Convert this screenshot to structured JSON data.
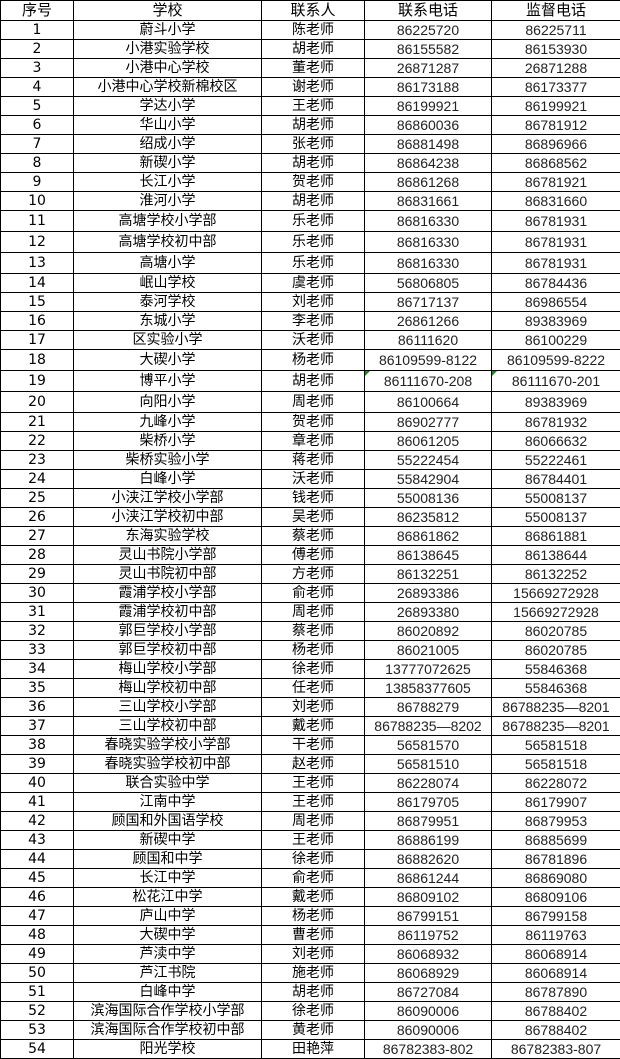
{
  "headers": [
    "序号",
    "学校",
    "联系人",
    "联系电话",
    "监督电话"
  ],
  "flag_color": "#1a8a1a",
  "rows": [
    [
      "1",
      "蔚斗小学",
      "陈老师",
      "86225720",
      "86225711"
    ],
    [
      "2",
      "小港实验学校",
      "胡老师",
      "86155582",
      "86153930"
    ],
    [
      "3",
      "小港中心学校",
      "董老师",
      "26871287",
      "26871288"
    ],
    [
      "4",
      "小港中心学校新棉校区",
      "谢老师",
      "86173188",
      "86173377"
    ],
    [
      "5",
      "学达小学",
      "王老师",
      "86199921",
      "86199921"
    ],
    [
      "6",
      "华山小学",
      "胡老师",
      "86860036",
      "86781912"
    ],
    [
      "7",
      "绍成小学",
      "张老师",
      "86881498",
      "86896966"
    ],
    [
      "8",
      "新碶小学",
      "胡老师",
      "86864238",
      "86868562"
    ],
    [
      "9",
      "长江小学",
      "贺老师",
      "86861268",
      "86781921"
    ],
    [
      "10",
      "淮河小学",
      "胡老师",
      "86831661",
      "86831660"
    ],
    [
      "11",
      "高塘学校小学部",
      "乐老师",
      "86816330",
      "86781931"
    ],
    [
      "12",
      "高塘学校初中部",
      "乐老师",
      "86816330",
      "86781931"
    ],
    [
      "13",
      "高塘小学",
      "乐老师",
      "86816330",
      "86781931"
    ],
    [
      "14",
      "岷山学校",
      "虞老师",
      "56806805",
      "86784436"
    ],
    [
      "15",
      "泰河学校",
      "刘老师",
      "86717137",
      "86986554"
    ],
    [
      "16",
      "东城小学",
      "李老师",
      "26861266",
      "89383969"
    ],
    [
      "17",
      "区实验小学",
      "沃老师",
      "86111620",
      "86100229"
    ],
    [
      "18",
      "大碶小学",
      "杨老师",
      "86109599-8122",
      "86109599-8222"
    ],
    [
      "19",
      "博平小学",
      "胡老师",
      "86111670-208",
      "86111670-201"
    ],
    [
      "20",
      "向阳小学",
      "周老师",
      "86100664",
      "89383969"
    ],
    [
      "21",
      "九峰小学",
      "贺老师",
      "86902777",
      "86781932"
    ],
    [
      "22",
      "柴桥小学",
      "章老师",
      "86061205",
      "86066632"
    ],
    [
      "23",
      "柴桥实验小学",
      "蒋老师",
      "55222454",
      "55222461"
    ],
    [
      "24",
      "白峰小学",
      "沃老师",
      "55842904",
      "86784401"
    ],
    [
      "25",
      "小浃江学校小学部",
      "钱老师",
      "55008136",
      "55008137"
    ],
    [
      "26",
      "小浃江学校初中部",
      "吴老师",
      "86235812",
      "55008137"
    ],
    [
      "27",
      "东海实验学校",
      "蔡老师",
      "86861862",
      "86861881"
    ],
    [
      "28",
      "灵山书院小学部",
      "傅老师",
      "86138645",
      "86138644"
    ],
    [
      "29",
      "灵山书院初中部",
      "方老师",
      "86132251",
      "86132252"
    ],
    [
      "30",
      "霞浦学校小学部",
      "俞老师",
      "26893386",
      "15669272928"
    ],
    [
      "31",
      "霞浦学校初中部",
      "周老师",
      "26893380",
      "15669272928"
    ],
    [
      "32",
      "郭巨学校小学部",
      "蔡老师",
      "86020892",
      "86020785"
    ],
    [
      "33",
      "郭巨学校初中部",
      "杨老师",
      "86021005",
      "86020785"
    ],
    [
      "34",
      "梅山学校小学部",
      "徐老师",
      "13777072625",
      "55846368"
    ],
    [
      "35",
      "梅山学校初中部",
      "任老师",
      "13858377605",
      "55846368"
    ],
    [
      "36",
      "三山学校小学部",
      "刘老师",
      "86788279",
      "86788235—8201"
    ],
    [
      "37",
      "三山学校初中部",
      "戴老师",
      "86788235—8202",
      "86788235—8201"
    ],
    [
      "38",
      "春晓实验学校小学部",
      "干老师",
      "56581570",
      "56581518"
    ],
    [
      "39",
      "春晓实验学校初中部",
      "赵老师",
      "56581510",
      "56581518"
    ],
    [
      "40",
      "联合实验中学",
      "王老师",
      "86228074",
      "86228072"
    ],
    [
      "41",
      "江南中学",
      "王老师",
      "86179705",
      "86179907"
    ],
    [
      "42",
      "顾国和外国语学校",
      "周老师",
      "86879951",
      "86879953"
    ],
    [
      "43",
      "新碶中学",
      "王老师",
      "86886199",
      "86885699"
    ],
    [
      "44",
      "顾国和中学",
      "徐老师",
      "86882620",
      "86781896"
    ],
    [
      "45",
      "长江中学",
      "俞老师",
      "86861244",
      "86869080"
    ],
    [
      "46",
      "松花江中学",
      "戴老师",
      "86809102",
      "86809106"
    ],
    [
      "47",
      "庐山中学",
      "杨老师",
      "86799151",
      "86799158"
    ],
    [
      "48",
      "大碶中学",
      "曹老师",
      "86119752",
      "86119763"
    ],
    [
      "49",
      "芦渎中学",
      "刘老师",
      "86068932",
      "86068914"
    ],
    [
      "50",
      "芦江书院",
      "施老师",
      "86068929",
      "86068914"
    ],
    [
      "51",
      "白峰中学",
      "胡老师",
      "86727084",
      "86787890"
    ],
    [
      "52",
      "滨海国际合作学校小学部",
      "徐老师",
      "86090006",
      "86788402"
    ],
    [
      "53",
      "滨海国际合作学校初中部",
      "黄老师",
      "86090006",
      "86788402"
    ],
    [
      "54",
      "阳光学校",
      "田艳萍",
      "86782383-802",
      "86782383-807"
    ]
  ]
}
